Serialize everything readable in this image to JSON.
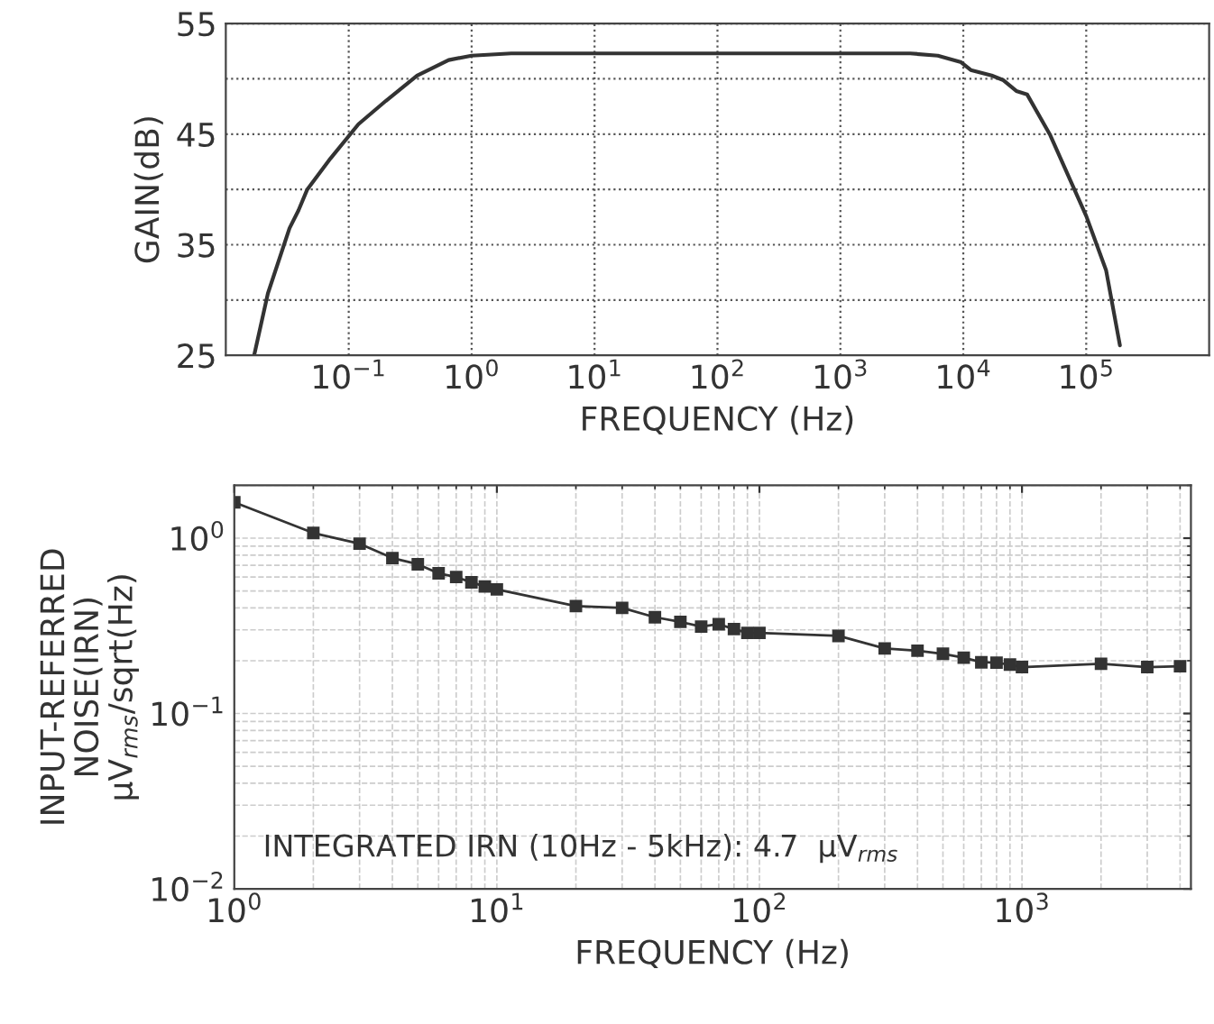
{
  "chart_data": [
    {
      "type": "line",
      "xlabel": "FREQUENCY (Hz)",
      "ylabel": "GAIN(dB)",
      "log": "x",
      "grid": true,
      "marker": "none",
      "line_style": "solid",
      "x": [
        0.017,
        0.022,
        0.033,
        0.039,
        0.046,
        0.071,
        0.12,
        0.2,
        0.36,
        0.65,
        1,
        2.1,
        3700,
        6200,
        9600,
        11500,
        17000,
        21000,
        27000,
        33000,
        51000,
        100000,
        145000,
        188000
      ],
      "series": [
        {
          "color": "#333333",
          "values": [
            25,
            30.6,
            36.5,
            38.1,
            40,
            42.8,
            45.9,
            48,
            50.3,
            51.7,
            52.1,
            52.3,
            52.3,
            52.1,
            51.5,
            50.8,
            50.3,
            49.9,
            48.9,
            48.6,
            44.9,
            37.6,
            32.7,
            25.9
          ]
        }
      ],
      "xlim": [
        0.01,
        1000000
      ],
      "ylim": [
        25,
        55
      ],
      "xticks": [
        {
          "value": 0.1,
          "label": "10$^{−1}$"
        },
        {
          "value": 1,
          "label": "10$^{0}$"
        },
        {
          "value": 10,
          "label": "10$^{1}$"
        },
        {
          "value": 100,
          "label": "10$^{2}$"
        },
        {
          "value": 1000,
          "label": "10$^{3}$"
        },
        {
          "value": 10000,
          "label": "10$^{4}$"
        },
        {
          "value": 100000,
          "label": "10$^{5}$"
        }
      ],
      "yticks": [
        25,
        {
          "value": 30,
          "label": null
        },
        35,
        {
          "value": 40,
          "label": null
        },
        45,
        {
          "value": 50,
          "label": null
        },
        55
      ]
    },
    {
      "type": "line",
      "xlabel": "FREQUENCY (Hz)",
      "ylabel": "INPUT-REFERRED\nNOISE(IRN)\nμV$_{rms}$/sqrt(Hz)",
      "log": "xy",
      "grid": true,
      "marker": "square",
      "line_style": "solid",
      "annotations": [
        "INTEGRATED IRN (10Hz - 5kHz): 4.7  μV$_{rms}$"
      ],
      "x": [
        1,
        2,
        3,
        4,
        5,
        6,
        7,
        8,
        9,
        10,
        20,
        30,
        40,
        50,
        60,
        70,
        80,
        90,
        100,
        200,
        300,
        400,
        500,
        600,
        700,
        800,
        900,
        1000,
        2000,
        3000,
        4000
      ],
      "series": [
        {
          "color": "#333333",
          "values": [
            1.6,
            1.07,
            0.93,
            0.77,
            0.71,
            0.63,
            0.6,
            0.56,
            0.53,
            0.51,
            0.41,
            0.4,
            0.354,
            0.333,
            0.313,
            0.323,
            0.303,
            0.288,
            0.288,
            0.277,
            0.235,
            0.228,
            0.219,
            0.208,
            0.196,
            0.195,
            0.19,
            0.184,
            0.192,
            0.184,
            0.186
          ]
        }
      ],
      "xlim": [
        1,
        4400
      ],
      "ylim": [
        0.01,
        2
      ],
      "xticks": [
        {
          "value": 1,
          "label": "10$^{0}$"
        },
        {
          "value": 10,
          "label": "10$^{1}$"
        },
        {
          "value": 100,
          "label": "10$^{2}$"
        },
        {
          "value": 1000,
          "label": "10$^{3}$"
        }
      ],
      "yticks": [
        {
          "value": 0.01,
          "label": "10$^{−2}$"
        },
        {
          "value": 0.1,
          "label": "10$^{−1}$"
        },
        {
          "value": 1,
          "label": "10$^{0}$"
        }
      ]
    }
  ]
}
